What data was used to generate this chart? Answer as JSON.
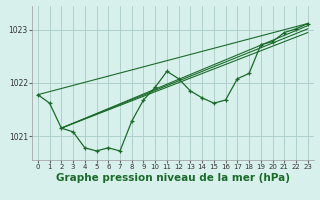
{
  "background_color": "#d8f0ec",
  "grid_color": "#aaccc8",
  "line_color": "#1a6b2a",
  "title": "Graphe pression niveau de la mer (hPa)",
  "title_fontsize": 7.5,
  "xlim": [
    -0.5,
    23.5
  ],
  "ylim": [
    1020.55,
    1023.45
  ],
  "yticks": [
    1021,
    1022,
    1023
  ],
  "xticks": [
    0,
    1,
    2,
    3,
    4,
    5,
    6,
    7,
    8,
    9,
    10,
    11,
    12,
    13,
    14,
    15,
    16,
    17,
    18,
    19,
    20,
    21,
    22,
    23
  ],
  "series_main": [
    [
      0,
      1021.78
    ],
    [
      1,
      1021.62
    ],
    [
      2,
      1021.15
    ],
    [
      3,
      1021.08
    ],
    [
      4,
      1020.78
    ],
    [
      5,
      1020.72
    ],
    [
      6,
      1020.78
    ],
    [
      7,
      1020.72
    ],
    [
      8,
      1021.28
    ],
    [
      9,
      1021.68
    ],
    [
      10,
      1021.92
    ],
    [
      11,
      1022.22
    ],
    [
      12,
      1022.08
    ],
    [
      13,
      1021.85
    ],
    [
      14,
      1021.72
    ],
    [
      15,
      1021.62
    ],
    [
      16,
      1021.68
    ],
    [
      17,
      1022.08
    ],
    [
      18,
      1022.18
    ],
    [
      19,
      1022.72
    ],
    [
      20,
      1022.78
    ],
    [
      21,
      1022.95
    ],
    [
      22,
      1023.02
    ],
    [
      23,
      1023.12
    ]
  ],
  "series_linear1": [
    [
      0,
      1021.78
    ],
    [
      23,
      1023.12
    ]
  ],
  "series_linear2": [
    [
      2,
      1021.15
    ],
    [
      23,
      1023.08
    ]
  ],
  "series_linear3": [
    [
      2,
      1021.15
    ],
    [
      23,
      1023.02
    ]
  ],
  "series_linear4": [
    [
      2,
      1021.15
    ],
    [
      23,
      1022.95
    ]
  ]
}
